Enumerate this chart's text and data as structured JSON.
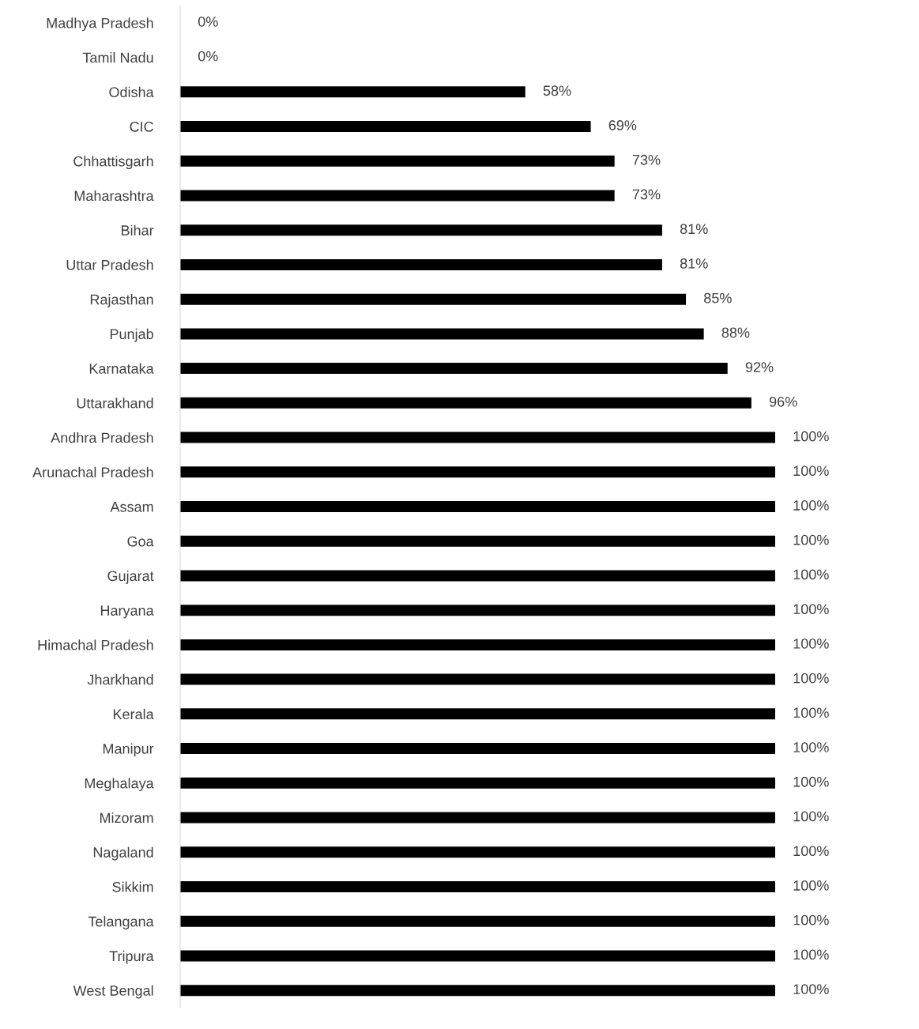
{
  "chart_data": {
    "type": "bar",
    "orientation": "horizontal",
    "categories": [
      "Madhya Pradesh",
      "Tamil Nadu",
      "Odisha",
      "CIC",
      "Chhattisgarh",
      "Maharashtra",
      "Bihar",
      "Uttar Pradesh",
      "Rajasthan",
      "Punjab",
      "Karnataka",
      "Uttarakhand",
      "Andhra Pradesh",
      "Arunachal Pradesh",
      "Assam",
      "Goa",
      "Gujarat",
      "Haryana",
      "Himachal Pradesh",
      "Jharkhand",
      "Kerala",
      "Manipur",
      "Meghalaya",
      "Mizoram",
      "Nagaland",
      "Sikkim",
      "Telangana",
      "Tripura",
      "West Bengal"
    ],
    "values": [
      0,
      0,
      58,
      69,
      73,
      73,
      81,
      81,
      85,
      88,
      92,
      96,
      100,
      100,
      100,
      100,
      100,
      100,
      100,
      100,
      100,
      100,
      100,
      100,
      100,
      100,
      100,
      100,
      100
    ],
    "value_labels": [
      "0%",
      "0%",
      "58%",
      "69%",
      "73%",
      "73%",
      "81%",
      "81%",
      "85%",
      "88%",
      "92%",
      "96%",
      "100%",
      "100%",
      "100%",
      "100%",
      "100%",
      "100%",
      "100%",
      "100%",
      "100%",
      "100%",
      "100%",
      "100%",
      "100%",
      "100%",
      "100%",
      "100%",
      "100%"
    ],
    "color": "#000000",
    "grid": false,
    "legend": false
  }
}
